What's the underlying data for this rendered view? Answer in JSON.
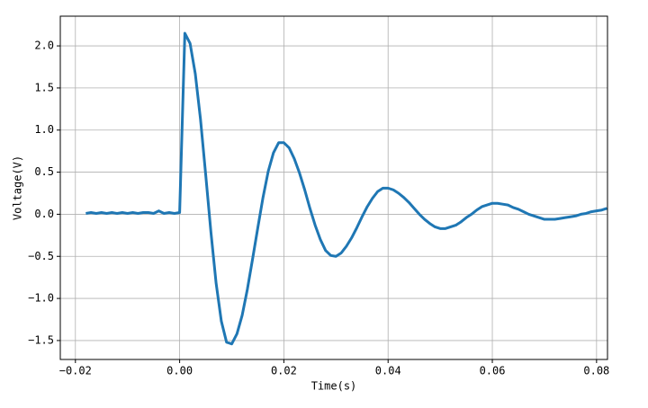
{
  "chart_data": {
    "type": "line",
    "xlabel": "Time(s)",
    "ylabel": "Voltage(V)",
    "x": [
      -0.018,
      -0.017,
      -0.016,
      -0.015,
      -0.014,
      -0.013,
      -0.012,
      -0.011,
      -0.01,
      -0.009,
      -0.008,
      -0.007,
      -0.006,
      -0.005,
      -0.004,
      -0.003,
      -0.002,
      -0.001,
      0,
      0.001,
      0.002,
      0.003,
      0.004,
      0.005,
      0.006,
      0.007,
      0.008,
      0.009,
      0.01,
      0.011,
      0.012,
      0.013,
      0.014,
      0.015,
      0.016,
      0.017,
      0.018,
      0.019,
      0.02,
      0.021,
      0.022,
      0.023,
      0.024,
      0.025,
      0.026,
      0.027,
      0.028,
      0.029,
      0.03,
      0.031,
      0.032,
      0.033,
      0.034,
      0.035,
      0.036,
      0.037,
      0.038,
      0.039,
      0.04,
      0.041,
      0.042,
      0.043,
      0.044,
      0.045,
      0.046,
      0.047,
      0.048,
      0.049,
      0.05,
      0.051,
      0.052,
      0.053,
      0.054,
      0.055,
      0.056,
      0.057,
      0.058,
      0.059,
      0.06,
      0.061,
      0.062,
      0.063,
      0.064,
      0.065,
      0.066,
      0.067,
      0.068,
      0.069,
      0.07,
      0.071,
      0.072,
      0.073,
      0.074,
      0.075,
      0.076,
      0.077,
      0.078,
      0.079,
      0.08,
      0.081,
      0.082
    ],
    "series": [
      {
        "color": "#1f77b4",
        "values": [
          0.01,
          0.02,
          0.01,
          0.02,
          0.01,
          0.02,
          0.01,
          0.02,
          0.01,
          0.02,
          0.01,
          0.02,
          0.02,
          0.01,
          0.04,
          0.01,
          0.02,
          0.01,
          0.02,
          2.15,
          2.03,
          1.67,
          1.13,
          0.47,
          -0.21,
          -0.82,
          -1.27,
          -1.52,
          -1.54,
          -1.42,
          -1.2,
          -0.89,
          -0.53,
          -0.16,
          0.2,
          0.51,
          0.73,
          0.85,
          0.85,
          0.79,
          0.66,
          0.49,
          0.29,
          0.07,
          -0.13,
          -0.3,
          -0.43,
          -0.49,
          -0.5,
          -0.46,
          -0.38,
          -0.28,
          -0.16,
          -0.03,
          0.09,
          0.19,
          0.27,
          0.31,
          0.31,
          0.29,
          0.25,
          0.2,
          0.14,
          0.07,
          0,
          -0.06,
          -0.11,
          -0.15,
          -0.17,
          -0.17,
          -0.15,
          -0.13,
          -0.09,
          -0.04,
          0,
          0.05,
          0.09,
          0.11,
          0.13,
          0.13,
          0.12,
          0.11,
          0.08,
          0.06,
          0.03,
          0,
          -0.02,
          -0.04,
          -0.06,
          -0.06,
          -0.06,
          -0.05,
          -0.04,
          -0.03,
          -0.02,
          0,
          0.01,
          0.03,
          0.04,
          0.05,
          0.07
        ]
      }
    ],
    "xlim": [
      -0.0229,
      0.0821
    ],
    "ylim": [
      -1.725,
      2.353
    ],
    "xticks": [
      {
        "value": -0.02,
        "label": "−0.02"
      },
      {
        "value": 0,
        "label": "0.00"
      },
      {
        "value": 0.02,
        "label": "0.02"
      },
      {
        "value": 0.04,
        "label": "0.04"
      },
      {
        "value": 0.06,
        "label": "0.06"
      },
      {
        "value": 0.08,
        "label": "0.08"
      }
    ],
    "yticks": [
      {
        "value": -1.5,
        "label": "−1.5"
      },
      {
        "value": -1,
        "label": "−1.0"
      },
      {
        "value": -0.5,
        "label": "−0.5"
      },
      {
        "value": 0,
        "label": "0.0"
      },
      {
        "value": 0.5,
        "label": "0.5"
      },
      {
        "value": 1,
        "label": "1.0"
      },
      {
        "value": 1.5,
        "label": "1.5"
      },
      {
        "value": 2,
        "label": "2.0"
      }
    ],
    "grid": true
  }
}
